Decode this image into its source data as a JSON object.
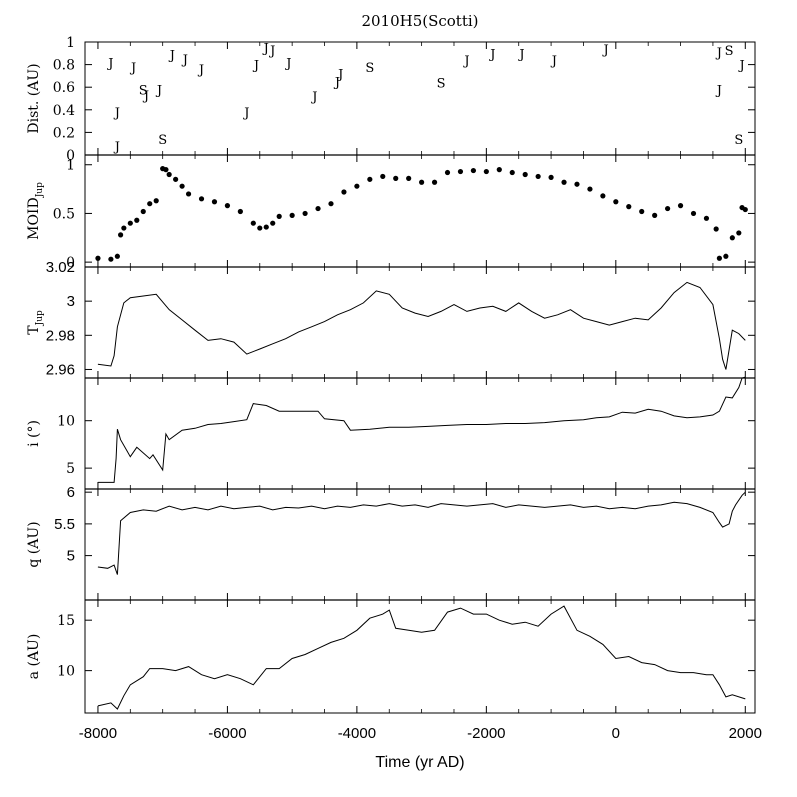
{
  "chart_data": {
    "title": "2010H5(Scotti)",
    "type": "line",
    "xlabel": "Time (yr AD)",
    "xlim": [
      -8200,
      2150
    ],
    "x_ticks": [
      -8000,
      -6000,
      -4000,
      -2000,
      0,
      2000
    ],
    "x_tick_labels": [
      "-8000",
      "-6000",
      "-4000",
      "-2000",
      "0",
      "2000"
    ],
    "panels": [
      {
        "id": "dist",
        "type": "scatter",
        "ylabel": "Dist. (AU)",
        "ylim": [
          0,
          1
        ],
        "y_ticks": [
          0,
          0.2,
          0.4,
          0.6,
          0.8,
          1
        ],
        "y_tick_labels": [
          "0",
          "0.2",
          "0.4",
          "0.6",
          "0.8",
          "1"
        ],
        "encounters": [
          {
            "t": -7800,
            "d": 0.82,
            "body": "J"
          },
          {
            "t": -7700,
            "d": 0.38,
            "body": "J"
          },
          {
            "t": -7700,
            "d": 0.08,
            "body": "J"
          },
          {
            "t": -7450,
            "d": 0.78,
            "body": "J"
          },
          {
            "t": -7300,
            "d": 0.58,
            "body": "S"
          },
          {
            "t": -7250,
            "d": 0.53,
            "body": "J"
          },
          {
            "t": -7050,
            "d": 0.58,
            "body": "J"
          },
          {
            "t": -7000,
            "d": 0.14,
            "body": "S"
          },
          {
            "t": -6850,
            "d": 0.89,
            "body": "J"
          },
          {
            "t": -6650,
            "d": 0.85,
            "body": "J"
          },
          {
            "t": -6400,
            "d": 0.76,
            "body": "J"
          },
          {
            "t": -5700,
            "d": 0.38,
            "body": "J"
          },
          {
            "t": -5550,
            "d": 0.8,
            "body": "J"
          },
          {
            "t": -5400,
            "d": 0.95,
            "body": "J"
          },
          {
            "t": -5300,
            "d": 0.93,
            "body": "J"
          },
          {
            "t": -5050,
            "d": 0.82,
            "body": "J"
          },
          {
            "t": -4650,
            "d": 0.52,
            "body": "J"
          },
          {
            "t": -4300,
            "d": 0.65,
            "body": "J"
          },
          {
            "t": -4250,
            "d": 0.72,
            "body": "J"
          },
          {
            "t": -3800,
            "d": 0.78,
            "body": "S"
          },
          {
            "t": -2700,
            "d": 0.64,
            "body": "S"
          },
          {
            "t": -2300,
            "d": 0.84,
            "body": "J"
          },
          {
            "t": -1900,
            "d": 0.9,
            "body": "J"
          },
          {
            "t": -1450,
            "d": 0.9,
            "body": "J"
          },
          {
            "t": -950,
            "d": 0.84,
            "body": "J"
          },
          {
            "t": -150,
            "d": 0.94,
            "body": "J"
          },
          {
            "t": 1600,
            "d": 0.91,
            "body": "J"
          },
          {
            "t": 1750,
            "d": 0.93,
            "body": "S"
          },
          {
            "t": 1600,
            "d": 0.58,
            "body": "J"
          },
          {
            "t": 1950,
            "d": 0.8,
            "body": "J"
          },
          {
            "t": 1900,
            "d": 0.14,
            "body": "S"
          }
        ]
      },
      {
        "id": "moid",
        "type": "scatter",
        "ylabel": "MOID",
        "ylabel_sub": "Jup",
        "ylim": [
          -0.05,
          1.1
        ],
        "y_ticks": [
          0,
          0.5,
          1
        ],
        "y_tick_labels": [
          "0",
          "0.5",
          "1"
        ],
        "x": [
          -8000,
          -7800,
          -7700,
          -7650,
          -7600,
          -7500,
          -7400,
          -7300,
          -7200,
          -7100,
          -7000,
          -6950,
          -6900,
          -6800,
          -6700,
          -6600,
          -6400,
          -6200,
          -6000,
          -5800,
          -5600,
          -5500,
          -5400,
          -5300,
          -5200,
          -5000,
          -4800,
          -4600,
          -4400,
          -4200,
          -4000,
          -3800,
          -3600,
          -3400,
          -3200,
          -3000,
          -2800,
          -2600,
          -2400,
          -2200,
          -2000,
          -1800,
          -1600,
          -1400,
          -1200,
          -1000,
          -800,
          -600,
          -400,
          -200,
          0,
          200,
          400,
          600,
          800,
          1000,
          1200,
          1400,
          1550,
          1600,
          1700,
          1800,
          1900,
          1950,
          2000
        ],
        "y": [
          0.04,
          0.03,
          0.06,
          0.28,
          0.35,
          0.4,
          0.43,
          0.52,
          0.6,
          0.63,
          0.96,
          0.95,
          0.9,
          0.85,
          0.78,
          0.7,
          0.65,
          0.62,
          0.58,
          0.52,
          0.4,
          0.35,
          0.36,
          0.4,
          0.47,
          0.48,
          0.5,
          0.55,
          0.6,
          0.72,
          0.78,
          0.85,
          0.88,
          0.86,
          0.86,
          0.82,
          0.82,
          0.92,
          0.93,
          0.94,
          0.93,
          0.95,
          0.92,
          0.9,
          0.88,
          0.87,
          0.82,
          0.8,
          0.75,
          0.68,
          0.62,
          0.57,
          0.52,
          0.48,
          0.55,
          0.58,
          0.5,
          0.45,
          0.34,
          0.04,
          0.06,
          0.25,
          0.3,
          0.56,
          0.54
        ]
      },
      {
        "id": "tjup",
        "type": "line",
        "ylabel": "T",
        "ylabel_sub": "Jup",
        "ylim": [
          2.955,
          3.02
        ],
        "y_ticks": [
          2.96,
          2.98,
          3,
          3.02
        ],
        "y_tick_labels": [
          "2.96",
          "2.98",
          "3",
          "3.02"
        ],
        "x": [
          -8000,
          -7800,
          -7750,
          -7700,
          -7600,
          -7500,
          -7300,
          -7100,
          -6900,
          -6700,
          -6500,
          -6300,
          -6100,
          -5900,
          -5700,
          -5500,
          -5300,
          -5100,
          -4900,
          -4700,
          -4500,
          -4300,
          -4100,
          -3900,
          -3700,
          -3500,
          -3300,
          -3100,
          -2900,
          -2700,
          -2500,
          -2300,
          -2100,
          -1900,
          -1700,
          -1500,
          -1300,
          -1100,
          -900,
          -700,
          -500,
          -300,
          -100,
          100,
          300,
          500,
          700,
          900,
          1100,
          1300,
          1500,
          1600,
          1650,
          1700,
          1800,
          1900,
          2000
        ],
        "y": [
          2.963,
          2.962,
          2.968,
          2.985,
          2.999,
          3.002,
          3.003,
          3.004,
          2.995,
          2.989,
          2.983,
          2.977,
          2.978,
          2.976,
          2.969,
          2.972,
          2.975,
          2.978,
          2.982,
          2.985,
          2.988,
          2.992,
          2.995,
          2.999,
          3.006,
          3.004,
          2.996,
          2.993,
          2.991,
          2.994,
          2.998,
          2.994,
          2.996,
          2.997,
          2.994,
          2.999,
          2.994,
          2.99,
          2.992,
          2.995,
          2.99,
          2.988,
          2.986,
          2.988,
          2.99,
          2.989,
          2.996,
          3.005,
          3.011,
          3.008,
          2.998,
          2.978,
          2.966,
          2.96,
          2.983,
          2.981,
          2.977
        ]
      },
      {
        "id": "incl",
        "type": "line",
        "ylabel": "i (°)",
        "ylim": [
          2.8,
          14.5
        ],
        "y_ticks": [
          5,
          10
        ],
        "y_tick_labels": [
          "5",
          "10"
        ],
        "x": [
          -8000,
          -7750,
          -7720,
          -7700,
          -7650,
          -7500,
          -7400,
          -7200,
          -7150,
          -7000,
          -6950,
          -6900,
          -6700,
          -6500,
          -6300,
          -6100,
          -5900,
          -5700,
          -5600,
          -5400,
          -5200,
          -4600,
          -4500,
          -4200,
          -4100,
          -3800,
          -3500,
          -3200,
          -2900,
          -2600,
          -2300,
          -2000,
          -1700,
          -1400,
          -1100,
          -800,
          -500,
          -300,
          -100,
          100,
          300,
          500,
          700,
          900,
          1100,
          1300,
          1500,
          1600,
          1700,
          1800,
          1900,
          1950,
          2000
        ],
        "y": [
          3.5,
          3.5,
          6.0,
          9.1,
          8.0,
          6.2,
          7.2,
          6.0,
          6.4,
          4.8,
          8.6,
          8.0,
          9.0,
          9.2,
          9.6,
          9.7,
          9.9,
          10.1,
          11.8,
          11.6,
          11.0,
          11.0,
          10.2,
          10.0,
          9.0,
          9.1,
          9.3,
          9.3,
          9.4,
          9.5,
          9.6,
          9.6,
          9.7,
          9.7,
          9.8,
          10.0,
          10.1,
          10.3,
          10.4,
          10.9,
          10.8,
          11.2,
          11.0,
          10.5,
          10.3,
          10.4,
          10.6,
          11.0,
          12.5,
          12.4,
          13.5,
          14.5,
          14.6
        ]
      },
      {
        "id": "q",
        "type": "line",
        "ylabel": "q (AU)",
        "ylim": [
          4.3,
          6.05
        ],
        "y_ticks": [
          5,
          5.5,
          6
        ],
        "y_tick_labels": [
          "5",
          "5.5",
          "6"
        ],
        "x": [
          -8000,
          -7850,
          -7750,
          -7700,
          -7650,
          -7500,
          -7300,
          -7100,
          -6900,
          -6700,
          -6500,
          -6300,
          -6100,
          -5900,
          -5700,
          -5500,
          -5300,
          -5100,
          -4900,
          -4700,
          -4500,
          -4300,
          -4100,
          -3900,
          -3700,
          -3500,
          -3300,
          -3100,
          -2900,
          -2700,
          -2500,
          -2300,
          -2100,
          -1900,
          -1700,
          -1500,
          -1300,
          -1100,
          -900,
          -700,
          -500,
          -300,
          -100,
          100,
          300,
          500,
          700,
          900,
          1100,
          1300,
          1500,
          1600,
          1650,
          1750,
          1800,
          1850,
          1950,
          2000
        ],
        "y": [
          4.82,
          4.8,
          4.85,
          4.7,
          5.55,
          5.68,
          5.72,
          5.7,
          5.78,
          5.72,
          5.76,
          5.72,
          5.78,
          5.74,
          5.76,
          5.78,
          5.72,
          5.76,
          5.75,
          5.78,
          5.74,
          5.78,
          5.76,
          5.8,
          5.78,
          5.82,
          5.78,
          5.8,
          5.76,
          5.82,
          5.8,
          5.78,
          5.8,
          5.82,
          5.76,
          5.8,
          5.78,
          5.76,
          5.78,
          5.8,
          5.76,
          5.78,
          5.74,
          5.76,
          5.74,
          5.78,
          5.8,
          5.84,
          5.82,
          5.76,
          5.68,
          5.52,
          5.45,
          5.5,
          5.7,
          5.8,
          5.95,
          6.0
        ]
      },
      {
        "id": "a",
        "type": "line",
        "ylabel": "a (AU)",
        "ylim": [
          5.8,
          17
        ],
        "y_ticks": [
          10,
          15
        ],
        "y_tick_labels": [
          "10",
          "15"
        ],
        "x": [
          -8000,
          -7800,
          -7700,
          -7600,
          -7500,
          -7300,
          -7200,
          -7000,
          -6800,
          -6600,
          -6400,
          -6200,
          -6000,
          -5800,
          -5600,
          -5400,
          -5200,
          -5000,
          -4800,
          -4600,
          -4400,
          -4200,
          -4000,
          -3800,
          -3600,
          -3500,
          -3400,
          -3200,
          -3000,
          -2800,
          -2600,
          -2400,
          -2200,
          -2000,
          -1800,
          -1600,
          -1400,
          -1200,
          -1000,
          -800,
          -600,
          -400,
          -200,
          0,
          200,
          400,
          600,
          800,
          1000,
          1200,
          1400,
          1500,
          1600,
          1700,
          1800,
          2000
        ],
        "y": [
          6.5,
          6.8,
          6.2,
          7.5,
          8.6,
          9.4,
          10.2,
          10.2,
          10.0,
          10.4,
          9.6,
          9.2,
          9.6,
          9.2,
          8.6,
          10.2,
          10.2,
          11.2,
          11.6,
          12.2,
          12.8,
          13.2,
          14.0,
          15.2,
          15.6,
          16.0,
          14.2,
          14.0,
          13.8,
          14.0,
          15.8,
          16.2,
          15.6,
          15.6,
          15.0,
          14.6,
          14.8,
          14.4,
          15.6,
          16.4,
          14.0,
          13.4,
          12.6,
          11.2,
          11.4,
          10.8,
          10.6,
          10.0,
          9.8,
          9.8,
          9.6,
          9.6,
          8.6,
          7.4,
          7.6,
          7.2
        ]
      }
    ]
  }
}
